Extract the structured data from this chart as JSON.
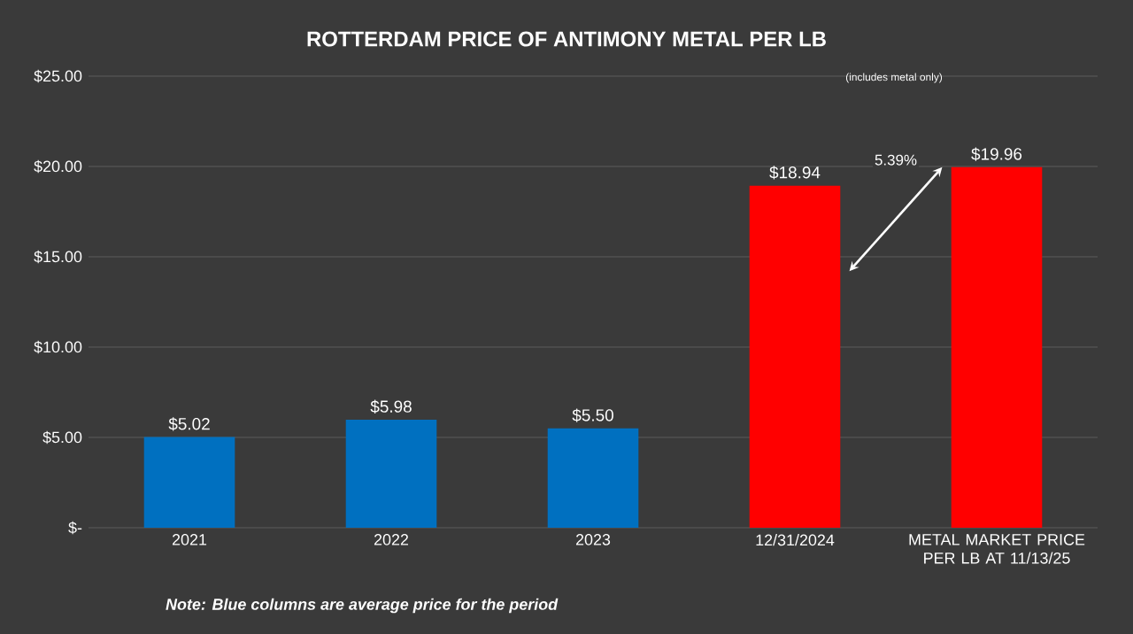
{
  "chart_data": {
    "type": "bar",
    "title": "ROTTERDAM PRICE OF ANTIMONY METAL PER LB",
    "categories": [
      "2021",
      "2022",
      "2023",
      "12/31/2024",
      "METAL MARKET PRICE PER LB AT 11/13/25"
    ],
    "values": [
      5.02,
      5.98,
      5.5,
      18.94,
      19.96
    ],
    "colors": [
      "#0070c0",
      "#0070c0",
      "#0070c0",
      "#ff0000",
      "#ff0000"
    ],
    "value_labels": [
      "$5.02",
      "$5.98",
      "$5.50",
      "$18.94",
      "$19.96"
    ],
    "ylim": [
      0,
      25
    ],
    "yticks": [
      {
        "value": 0,
        "label": "$-"
      },
      {
        "value": 5,
        "label": "$5.00"
      },
      {
        "value": 10,
        "label": "$10.00"
      },
      {
        "value": 15,
        "label": "$15.00"
      },
      {
        "value": 20,
        "label": "$20.00"
      },
      {
        "value": 25,
        "label": "$25.00"
      }
    ],
    "grid": "y",
    "annotations": [
      "(includes metal only)",
      "5.39%",
      "**Note: Blue columns are average price for the period**"
    ]
  }
}
